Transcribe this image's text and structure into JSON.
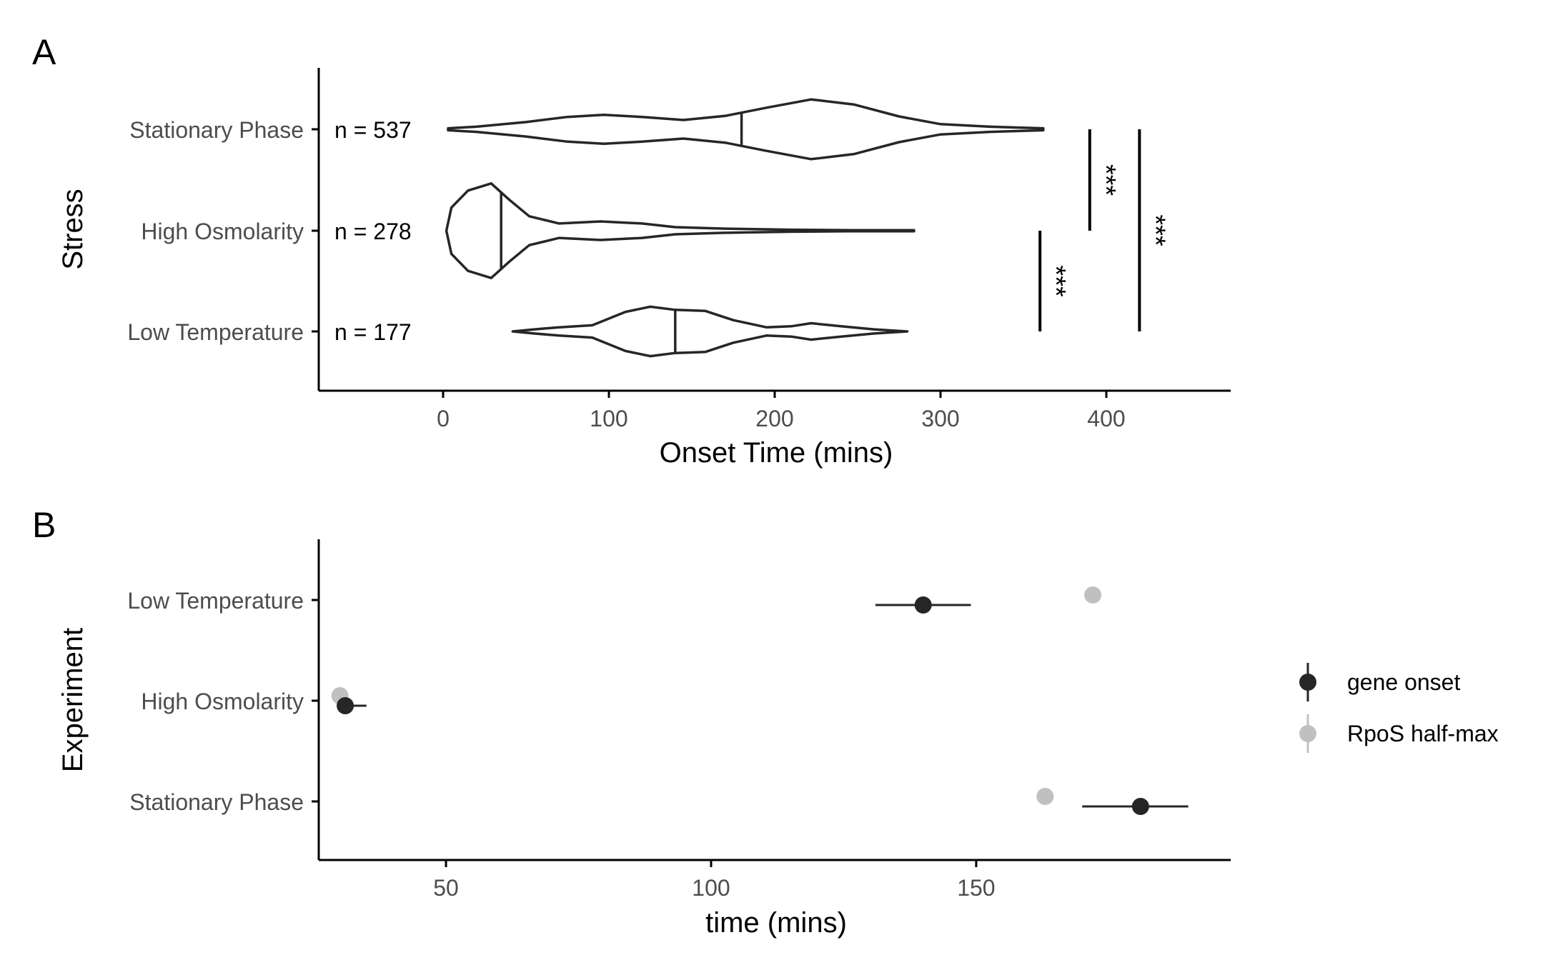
{
  "chart_data": [
    {
      "panel": "A",
      "type": "violin",
      "xlabel": "Onset Time (mins)",
      "ylabel": "Stress",
      "xlim": [
        -75,
        475
      ],
      "xticks": [
        0,
        100,
        200,
        300,
        400
      ],
      "categories": [
        "Stationary Phase",
        "High Osmolarity",
        "Low Temperature"
      ],
      "n_labels": [
        "n = 537",
        "n = 278",
        "n = 177"
      ],
      "medians": [
        180,
        35,
        140
      ],
      "distributions": [
        {
          "name": "Stationary Phase",
          "points": [
            [
              3,
              0.02
            ],
            [
              20,
              0.05
            ],
            [
              50,
              0.14
            ],
            [
              75,
              0.24
            ],
            [
              97,
              0.28
            ],
            [
              120,
              0.24
            ],
            [
              145,
              0.18
            ],
            [
              170,
              0.26
            ],
            [
              195,
              0.42
            ],
            [
              222,
              0.58
            ],
            [
              248,
              0.48
            ],
            [
              275,
              0.25
            ],
            [
              300,
              0.1
            ],
            [
              330,
              0.05
            ],
            [
              362,
              0.02
            ]
          ]
        },
        {
          "name": "High Osmolarity",
          "points": [
            [
              2,
              0.0
            ],
            [
              5,
              0.45
            ],
            [
              15,
              0.78
            ],
            [
              29,
              0.92
            ],
            [
              40,
              0.6
            ],
            [
              52,
              0.28
            ],
            [
              70,
              0.14
            ],
            [
              95,
              0.18
            ],
            [
              120,
              0.14
            ],
            [
              140,
              0.07
            ],
            [
              170,
              0.04
            ],
            [
              210,
              0.02
            ],
            [
              245,
              0.01
            ],
            [
              284,
              0.01
            ]
          ]
        },
        {
          "name": "Low Temperature",
          "points": [
            [
              42,
              0.0
            ],
            [
              55,
              0.04
            ],
            [
              70,
              0.08
            ],
            [
              90,
              0.12
            ],
            [
              110,
              0.38
            ],
            [
              125,
              0.48
            ],
            [
              140,
              0.42
            ],
            [
              158,
              0.4
            ],
            [
              175,
              0.22
            ],
            [
              195,
              0.08
            ],
            [
              210,
              0.1
            ],
            [
              222,
              0.16
            ],
            [
              240,
              0.1
            ],
            [
              260,
              0.04
            ],
            [
              280,
              0.0
            ]
          ]
        }
      ],
      "significance": [
        {
          "label": "***",
          "from": "High Osmolarity",
          "to": "Stationary Phase",
          "x": 390
        },
        {
          "label": "***",
          "from": "Low Temperature",
          "to": "Stationary Phase",
          "x": 420
        },
        {
          "label": "***",
          "from": "Low Temperature",
          "to": "High Osmolarity",
          "x": 360
        }
      ]
    },
    {
      "panel": "B",
      "type": "scatter",
      "xlabel": "time (mins)",
      "ylabel": "Experiment",
      "xlim": [
        26,
        198
      ],
      "xticks": [
        50,
        100,
        150
      ],
      "categories": [
        "Low Temperature",
        "High Osmolarity",
        "Stationary Phase"
      ],
      "series": [
        {
          "name": "gene onset",
          "color": "#262626",
          "values": [
            140,
            31,
            181
          ],
          "err_low": [
            131,
            31,
            170
          ],
          "err_high": [
            149,
            35,
            190
          ]
        },
        {
          "name": "RpoS half-max",
          "color": "#c0c0c0",
          "values": [
            172,
            30,
            163
          ]
        }
      ]
    }
  ],
  "panel_labels": [
    "A",
    "B"
  ]
}
